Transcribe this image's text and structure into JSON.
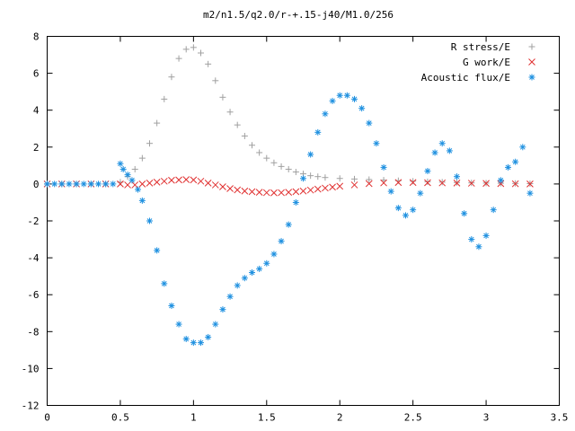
{
  "chart_data": {
    "type": "scatter",
    "title": "m2/n1.5/q2.0/r-+.15-j40/M1.0/256",
    "xlabel": "",
    "ylabel": "",
    "xlim": [
      0,
      3.5
    ],
    "ylim": [
      -12,
      8
    ],
    "xticks": [
      0,
      0.5,
      1,
      1.5,
      2,
      2.5,
      3,
      3.5
    ],
    "xtick_labels": [
      "0",
      "0.5",
      "1",
      "1.5",
      "2",
      "2.5",
      "3",
      "3.5"
    ],
    "yticks": [
      -12,
      -10,
      -8,
      -6,
      -4,
      -2,
      0,
      2,
      4,
      6,
      8
    ],
    "ytick_labels": [
      "-12",
      "-10",
      "-8",
      "-6",
      "-4",
      "-2",
      "0",
      "2",
      "4",
      "6",
      "8"
    ],
    "grid": false,
    "legend_position": "top-right",
    "series": [
      {
        "name": "R stress/E",
        "marker": "plus",
        "color": "#a0a0a0",
        "x": [
          0,
          0.1,
          0.2,
          0.3,
          0.4,
          0.5,
          0.55,
          0.6,
          0.65,
          0.7,
          0.75,
          0.8,
          0.85,
          0.9,
          0.95,
          1.0,
          1.05,
          1.1,
          1.15,
          1.2,
          1.25,
          1.3,
          1.35,
          1.4,
          1.45,
          1.5,
          1.55,
          1.6,
          1.65,
          1.7,
          1.75,
          1.8,
          1.85,
          1.9,
          2.0,
          2.1,
          2.2,
          2.3,
          2.4,
          2.5,
          2.6,
          2.7,
          2.8,
          2.9,
          3.0,
          3.1,
          3.2,
          3.3
        ],
        "y": [
          0,
          0,
          0,
          0,
          0,
          0.1,
          0.4,
          0.8,
          1.4,
          2.2,
          3.3,
          4.6,
          5.8,
          6.8,
          7.3,
          7.4,
          7.1,
          6.5,
          5.6,
          4.7,
          3.9,
          3.2,
          2.6,
          2.1,
          1.7,
          1.4,
          1.15,
          0.95,
          0.8,
          0.65,
          0.55,
          0.45,
          0.4,
          0.35,
          0.3,
          0.27,
          0.24,
          0.21,
          0.18,
          0.15,
          0.12,
          0.1,
          0.08,
          0.06,
          0.05,
          0.04,
          0.03,
          0.02
        ]
      },
      {
        "name": "G work/E",
        "marker": "cross",
        "color": "#e03030",
        "x": [
          0,
          0.1,
          0.2,
          0.3,
          0.4,
          0.5,
          0.55,
          0.6,
          0.65,
          0.7,
          0.75,
          0.8,
          0.85,
          0.9,
          0.95,
          1.0,
          1.05,
          1.1,
          1.15,
          1.2,
          1.25,
          1.3,
          1.35,
          1.4,
          1.45,
          1.5,
          1.55,
          1.6,
          1.65,
          1.7,
          1.75,
          1.8,
          1.85,
          1.9,
          1.95,
          2.0,
          2.1,
          2.2,
          2.3,
          2.4,
          2.5,
          2.6,
          2.7,
          2.8,
          2.9,
          3.0,
          3.1,
          3.2,
          3.3
        ],
        "y": [
          0,
          0,
          0,
          0,
          0,
          0,
          -0.05,
          -0.05,
          0,
          0.05,
          0.1,
          0.15,
          0.2,
          0.22,
          0.24,
          0.22,
          0.15,
          0.05,
          -0.05,
          -0.15,
          -0.25,
          -0.32,
          -0.38,
          -0.42,
          -0.45,
          -0.47,
          -0.48,
          -0.47,
          -0.45,
          -0.42,
          -0.38,
          -0.33,
          -0.28,
          -0.22,
          -0.17,
          -0.12,
          -0.05,
          0.02,
          0.06,
          0.08,
          0.08,
          0.07,
          0.06,
          0.05,
          0.04,
          0.03,
          0.02,
          0.01,
          0
        ]
      },
      {
        "name": "Acoustic flux/E",
        "marker": "star",
        "color": "#1e90e0",
        "x": [
          0,
          0.05,
          0.1,
          0.15,
          0.2,
          0.25,
          0.3,
          0.35,
          0.4,
          0.45,
          0.5,
          0.52,
          0.55,
          0.58,
          0.62,
          0.65,
          0.7,
          0.75,
          0.8,
          0.85,
          0.9,
          0.95,
          1.0,
          1.05,
          1.1,
          1.15,
          1.2,
          1.25,
          1.3,
          1.35,
          1.4,
          1.45,
          1.5,
          1.55,
          1.6,
          1.65,
          1.7,
          1.75,
          1.8,
          1.85,
          1.9,
          1.95,
          2.0,
          2.05,
          2.1,
          2.15,
          2.2,
          2.25,
          2.3,
          2.35,
          2.4,
          2.45,
          2.5,
          2.55,
          2.6,
          2.65,
          2.7,
          2.75,
          2.8,
          2.85,
          2.9,
          2.95,
          3.0,
          3.05,
          3.1,
          3.15,
          3.2,
          3.25,
          3.3
        ],
        "y": [
          0,
          0,
          0,
          0,
          0,
          0,
          0,
          0,
          0,
          0,
          1.1,
          0.8,
          0.5,
          0.2,
          -0.3,
          -0.9,
          -2.0,
          -3.6,
          -5.4,
          -6.6,
          -7.6,
          -8.4,
          -8.6,
          -8.6,
          -8.3,
          -7.6,
          -6.8,
          -6.1,
          -5.5,
          -5.1,
          -4.8,
          -4.6,
          -4.3,
          -3.8,
          -3.1,
          -2.2,
          -1.0,
          0.3,
          1.6,
          2.8,
          3.8,
          4.5,
          4.8,
          4.8,
          4.6,
          4.1,
          3.3,
          2.2,
          0.9,
          -0.4,
          -1.3,
          -1.7,
          -1.4,
          -0.5,
          0.7,
          1.7,
          2.2,
          1.8,
          0.4,
          -1.6,
          -3.0,
          -3.4,
          -2.8,
          -1.4,
          0.2,
          0.9,
          1.2,
          2.0,
          -0.5
        ]
      }
    ]
  }
}
